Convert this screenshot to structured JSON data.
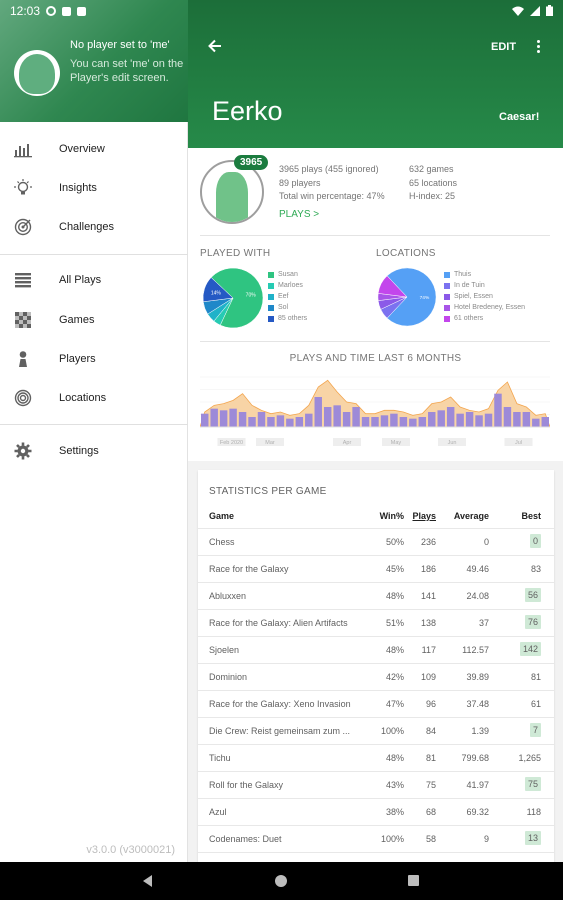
{
  "status_bar": {
    "time": "12:03"
  },
  "drawer": {
    "header_title": "No player set to 'me'",
    "header_hint": "You can set 'me' on the Player's edit screen.",
    "groups": [
      [
        {
          "label": "Overview",
          "icon": "bar-chart-icon"
        },
        {
          "label": "Insights",
          "icon": "lightbulb-icon"
        },
        {
          "label": "Challenges",
          "icon": "target-icon"
        }
      ],
      [
        {
          "label": "All Plays",
          "icon": "list-icon"
        },
        {
          "label": "Games",
          "icon": "checkerboard-icon"
        },
        {
          "label": "Players",
          "icon": "person-icon"
        },
        {
          "label": "Locations",
          "icon": "location-icon"
        }
      ],
      [
        {
          "label": "Settings",
          "icon": "gear-icon"
        }
      ]
    ],
    "version": "v3.0.0 (v3000021)"
  },
  "appbar": {
    "back_icon": "arrow-left-icon",
    "edit_label": "EDIT",
    "more_icon": "more-vert-icon",
    "player_name": "Eerko",
    "player_nick": "Caesar!"
  },
  "summary": {
    "plays_badge": "3965",
    "plays_line": "3965 plays (455 ignored)",
    "players_line": "89 players",
    "winpct_line": "Total win percentage: 47%",
    "games_line": "632 games",
    "locations_line": "65 locations",
    "hindex_line": "H-index: 25",
    "plays_link": "PLAYS >"
  },
  "played_with": {
    "title": "PLAYED WITH",
    "entries": [
      {
        "label": "Susan",
        "color": "#2fc481"
      },
      {
        "label": "Marloes",
        "color": "#26cbb3"
      },
      {
        "label": "Eef",
        "color": "#1fb2c9"
      },
      {
        "label": "Sol",
        "color": "#1f88c9"
      },
      {
        "label": "85 others",
        "color": "#2559c4"
      }
    ],
    "slices": [
      {
        "value": 0.7,
        "label": "70%"
      },
      {
        "value": 0.04,
        "label": ""
      },
      {
        "value": 0.05,
        "label": ""
      },
      {
        "value": 0.07,
        "label": ""
      },
      {
        "value": 0.14,
        "label": "14%"
      }
    ]
  },
  "locations": {
    "title": "LOCATIONS",
    "entries": [
      {
        "label": "Thuis",
        "color": "#55a0f5"
      },
      {
        "label": "In de Tuin",
        "color": "#7b72f0"
      },
      {
        "label": "Spiel, Essen",
        "color": "#8b59e8"
      },
      {
        "label": "Hotel Bredeney, Essen",
        "color": "#a855e8"
      },
      {
        "label": "61 others",
        "color": "#c346ec"
      }
    ],
    "slices": [
      {
        "value": 0.74,
        "label": "74%"
      },
      {
        "value": 0.06,
        "label": ""
      },
      {
        "value": 0.05,
        "label": ""
      },
      {
        "value": 0.04,
        "label": ""
      },
      {
        "value": 0.11,
        "label": ""
      }
    ]
  },
  "chart_data": {
    "type": "bar",
    "title": "PLAYS AND TIME LAST 6 MONTHS",
    "month_labels": [
      "Feb 2020",
      "Mar",
      "Apr",
      "May",
      "Jun",
      "Jul"
    ],
    "series": [
      {
        "values": [
          8,
          11,
          10,
          11,
          9,
          6,
          9,
          6,
          7,
          5,
          6,
          8,
          18,
          12,
          13,
          9,
          12,
          6,
          6,
          7,
          8,
          6,
          5,
          6,
          9,
          10,
          12,
          8,
          9,
          7,
          8,
          20,
          12,
          9,
          9,
          5,
          6
        ]
      },
      {
        "values": [
          9,
          13,
          14,
          16,
          20,
          13,
          10,
          8,
          9,
          7,
          8,
          13,
          24,
          28,
          21,
          15,
          14,
          8,
          8,
          10,
          10,
          9,
          7,
          8,
          14,
          15,
          18,
          12,
          10,
          9,
          11,
          22,
          27,
          14,
          12,
          7,
          8
        ]
      }
    ],
    "ylim": [
      0,
      30
    ]
  },
  "stats": {
    "title": "STATISTICS PER GAME",
    "headers": {
      "game": "Game",
      "win": "Win%",
      "plays": "Plays",
      "avg": "Average",
      "best": "Best"
    },
    "rows": [
      {
        "game": "Chess",
        "win": "50%",
        "plays": "236",
        "avg": "0",
        "best": "0",
        "hl": true
      },
      {
        "game": "Race for the Galaxy",
        "win": "45%",
        "plays": "186",
        "avg": "49.46",
        "best": "83",
        "hl": false
      },
      {
        "game": "Abluxxen",
        "win": "48%",
        "plays": "141",
        "avg": "24.08",
        "best": "56",
        "hl": true
      },
      {
        "game": "Race for the Galaxy: Alien Artifacts",
        "win": "51%",
        "plays": "138",
        "avg": "37",
        "best": "76",
        "hl": true
      },
      {
        "game": "Sjoelen",
        "win": "48%",
        "plays": "117",
        "avg": "112.57",
        "best": "142",
        "hl": true
      },
      {
        "game": "Dominion",
        "win": "42%",
        "plays": "109",
        "avg": "39.89",
        "best": "81",
        "hl": false
      },
      {
        "game": "Race for the Galaxy: Xeno Invasion",
        "win": "47%",
        "plays": "96",
        "avg": "37.48",
        "best": "61",
        "hl": false
      },
      {
        "game": "Die Crew: Reist gemeinsam zum ...",
        "win": "100%",
        "plays": "84",
        "avg": "1.39",
        "best": "7",
        "hl": true
      },
      {
        "game": "Tichu",
        "win": "48%",
        "plays": "81",
        "avg": "799.68",
        "best": "1,265",
        "hl": false
      },
      {
        "game": "Roll for the Galaxy",
        "win": "43%",
        "plays": "75",
        "avg": "41.97",
        "best": "75",
        "hl": true
      },
      {
        "game": "Azul",
        "win": "38%",
        "plays": "68",
        "avg": "69.32",
        "best": "118",
        "hl": false
      },
      {
        "game": "Codenames: Duet",
        "win": "100%",
        "plays": "58",
        "avg": "9",
        "best": "13",
        "hl": true
      }
    ]
  },
  "nav": {
    "back_icon": "nav-back-icon",
    "home_icon": "nav-home-icon",
    "recent_icon": "nav-recents-icon"
  }
}
